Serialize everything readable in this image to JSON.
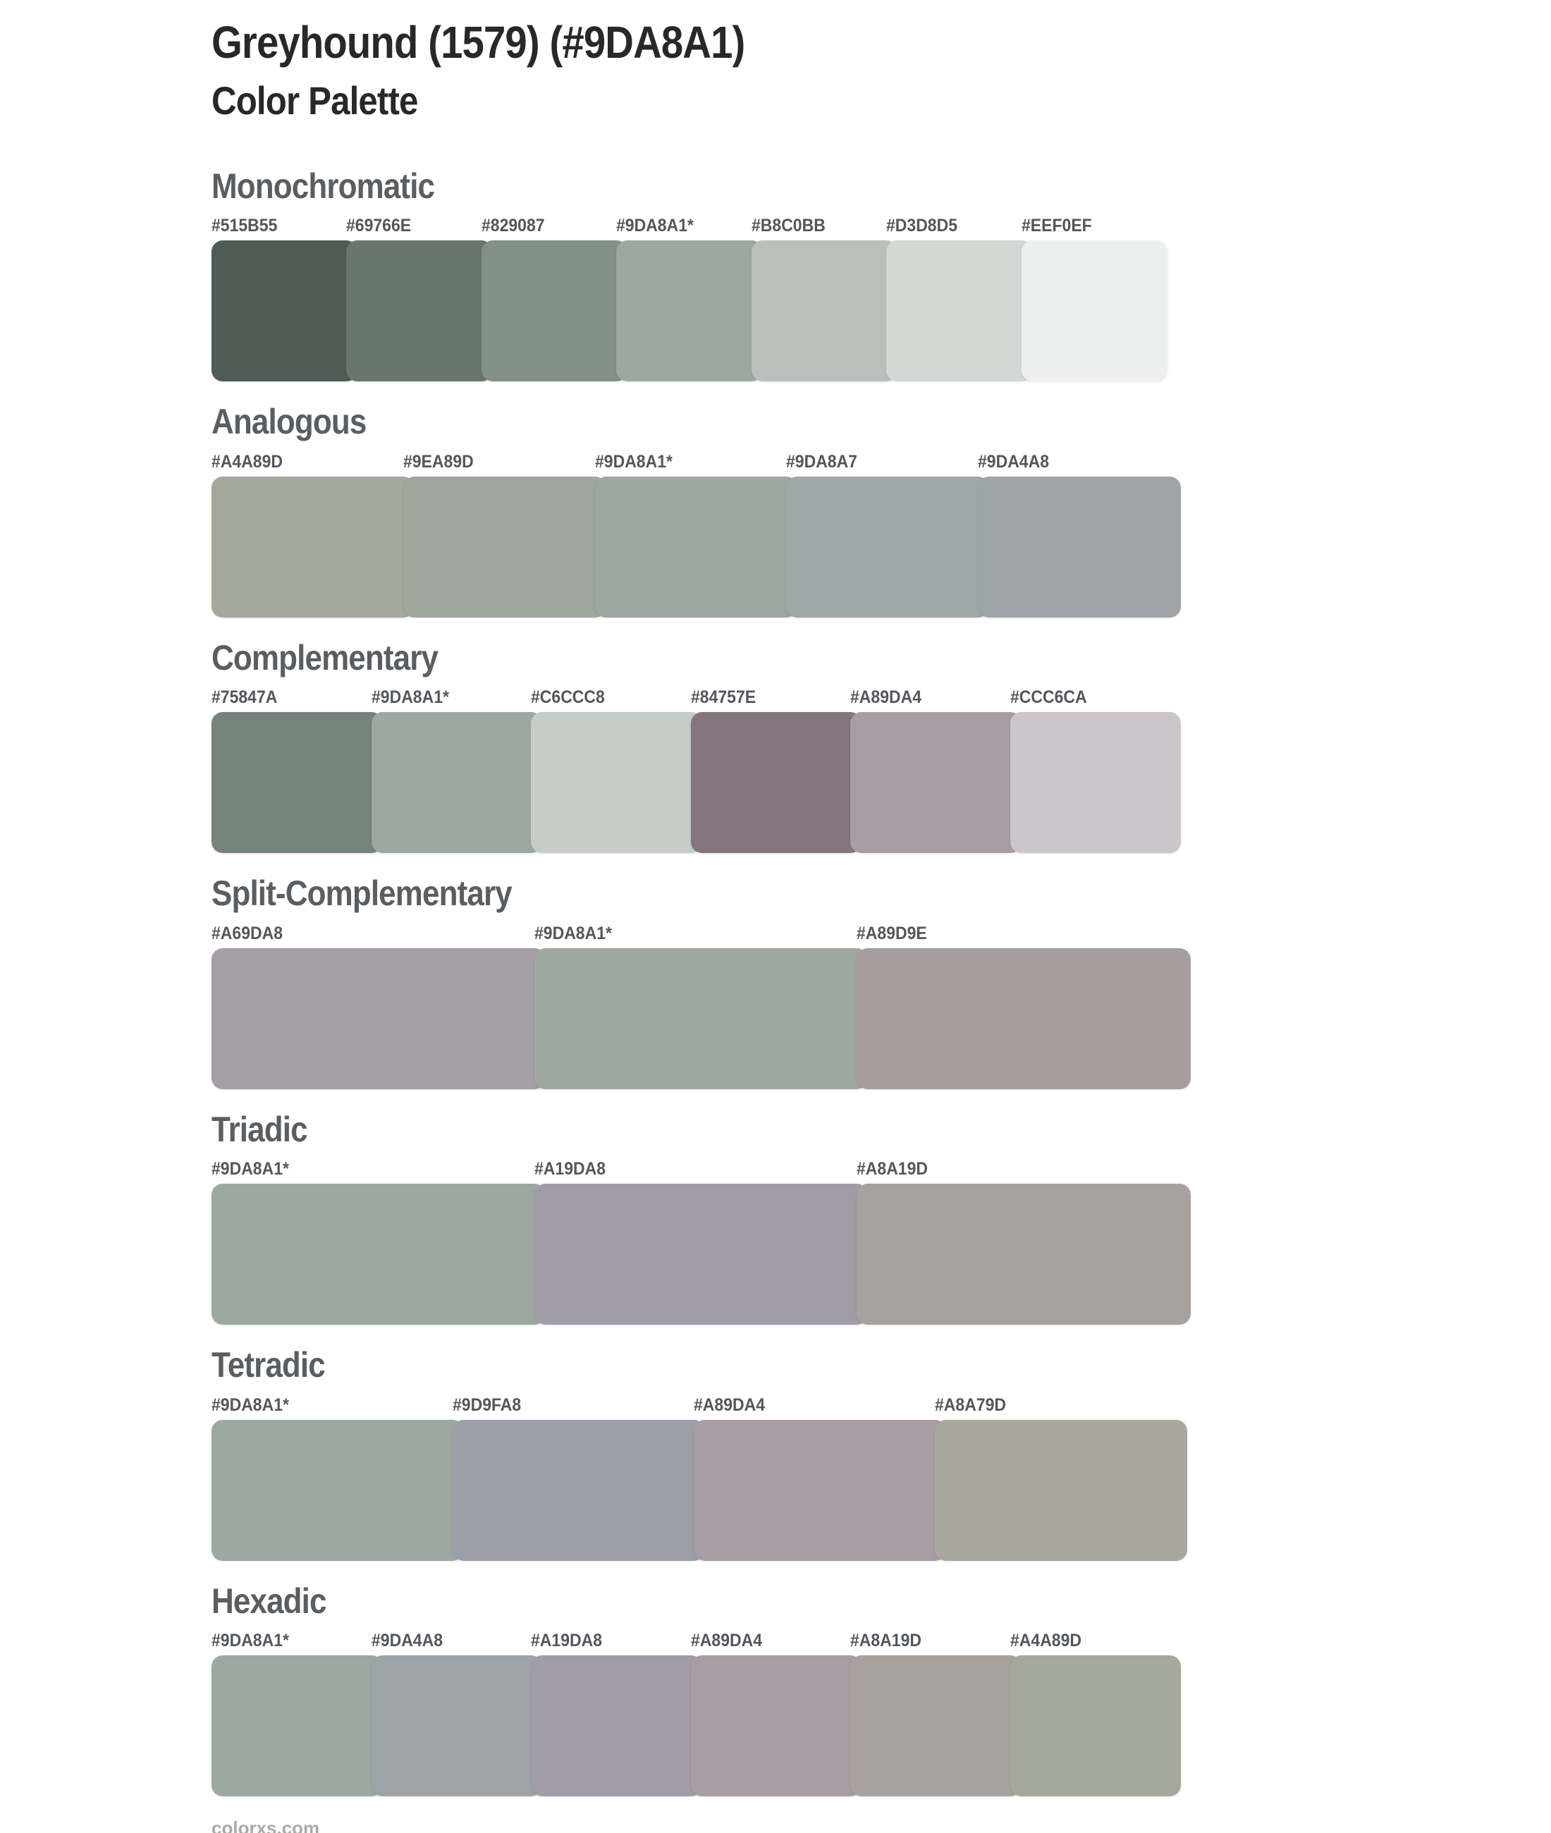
{
  "page": {
    "title": "Greyhound (1579) (#9DA8A1)",
    "subtitle": "Color Palette",
    "base_color": "#9DA8A1"
  },
  "sections": [
    {
      "name": "Monochromatic",
      "swatches": [
        {
          "label": "#515B55",
          "color": "#515B55"
        },
        {
          "label": "#69766E",
          "color": "#69766E"
        },
        {
          "label": "#829087",
          "color": "#829087"
        },
        {
          "label": "#9DA8A1*",
          "color": "#9DA8A1"
        },
        {
          "label": "#B8C0BB",
          "color": "#B8C0BB"
        },
        {
          "label": "#D3D8D5",
          "color": "#D3D8D5"
        },
        {
          "label": "#EEF0EF",
          "color": "#EEF0EF"
        }
      ]
    },
    {
      "name": "Analogous",
      "swatches": [
        {
          "label": "#A4A89D",
          "color": "#A4A89D"
        },
        {
          "label": "#9EA89D",
          "color": "#9EA89D"
        },
        {
          "label": "#9DA8A1*",
          "color": "#9DA8A1"
        },
        {
          "label": "#9DA8A7",
          "color": "#9DA8A7"
        },
        {
          "label": "#9DA4A8",
          "color": "#9DA4A8"
        }
      ]
    },
    {
      "name": "Complementary",
      "swatches": [
        {
          "label": "#75847A",
          "color": "#75847A"
        },
        {
          "label": "#9DA8A1*",
          "color": "#9DA8A1"
        },
        {
          "label": "#C6CCC8",
          "color": "#C6CCC8"
        },
        {
          "label": "#84757E",
          "color": "#84757E"
        },
        {
          "label": "#A89DA4",
          "color": "#A89DA4"
        },
        {
          "label": "#CCC6CA",
          "color": "#CCC6CA"
        }
      ]
    },
    {
      "name": "Split-Complementary",
      "swatches": [
        {
          "label": "#A69DA8",
          "color": "#A69DA8"
        },
        {
          "label": "#9DA8A1*",
          "color": "#9DA8A1"
        },
        {
          "label": "#A89D9E",
          "color": "#A89D9E"
        }
      ]
    },
    {
      "name": "Triadic",
      "swatches": [
        {
          "label": "#9DA8A1*",
          "color": "#9DA8A1"
        },
        {
          "label": "#A19DA8",
          "color": "#A19DA8"
        },
        {
          "label": "#A8A19D",
          "color": "#A8A19D"
        }
      ]
    },
    {
      "name": "Tetradic",
      "swatches": [
        {
          "label": "#9DA8A1*",
          "color": "#9DA8A1"
        },
        {
          "label": "#9D9FA8",
          "color": "#9D9FA8"
        },
        {
          "label": "#A89DA4",
          "color": "#A89DA4"
        },
        {
          "label": "#A8A79D",
          "color": "#A8A79D"
        }
      ]
    },
    {
      "name": "Hexadic",
      "swatches": [
        {
          "label": "#9DA8A1*",
          "color": "#9DA8A1"
        },
        {
          "label": "#9DA4A8",
          "color": "#9DA4A8"
        },
        {
          "label": "#A19DA8",
          "color": "#A19DA8"
        },
        {
          "label": "#A89DA4",
          "color": "#A89DA4"
        },
        {
          "label": "#A8A19D",
          "color": "#A8A19D"
        },
        {
          "label": "#A4A89D",
          "color": "#A4A89D"
        }
      ]
    }
  ],
  "chart_data": {
    "type": "table",
    "title": "Greyhound (1579) (#9DA8A1) Color Palette",
    "categories": [
      "Monochromatic",
      "Analogous",
      "Complementary",
      "Split-Complementary",
      "Triadic",
      "Tetradic",
      "Hexadic"
    ],
    "series": [
      {
        "name": "Monochromatic",
        "values": [
          "#515B55",
          "#69766E",
          "#829087",
          "#9DA8A1",
          "#B8C0BB",
          "#D3D8D5",
          "#EEF0EF"
        ]
      },
      {
        "name": "Analogous",
        "values": [
          "#A4A89D",
          "#9EA89D",
          "#9DA8A1",
          "#9DA8A7",
          "#9DA4A8"
        ]
      },
      {
        "name": "Complementary",
        "values": [
          "#75847A",
          "#9DA8A1",
          "#C6CCC8",
          "#84757E",
          "#A89DA4",
          "#CCC6CA"
        ]
      },
      {
        "name": "Split-Complementary",
        "values": [
          "#A69DA8",
          "#9DA8A1",
          "#A89D9E"
        ]
      },
      {
        "name": "Triadic",
        "values": [
          "#9DA8A1",
          "#A19DA8",
          "#A8A19D"
        ]
      },
      {
        "name": "Tetradic",
        "values": [
          "#9DA8A1",
          "#9D9FA8",
          "#A89DA4",
          "#A8A79D"
        ]
      },
      {
        "name": "Hexadic",
        "values": [
          "#9DA8A1",
          "#9DA4A8",
          "#A19DA8",
          "#A89DA4",
          "#A8A19D",
          "#A4A89D"
        ]
      }
    ],
    "base_color_marker": "* marks the base color #9DA8A1"
  },
  "footer": {
    "site": "colorxs.com"
  }
}
